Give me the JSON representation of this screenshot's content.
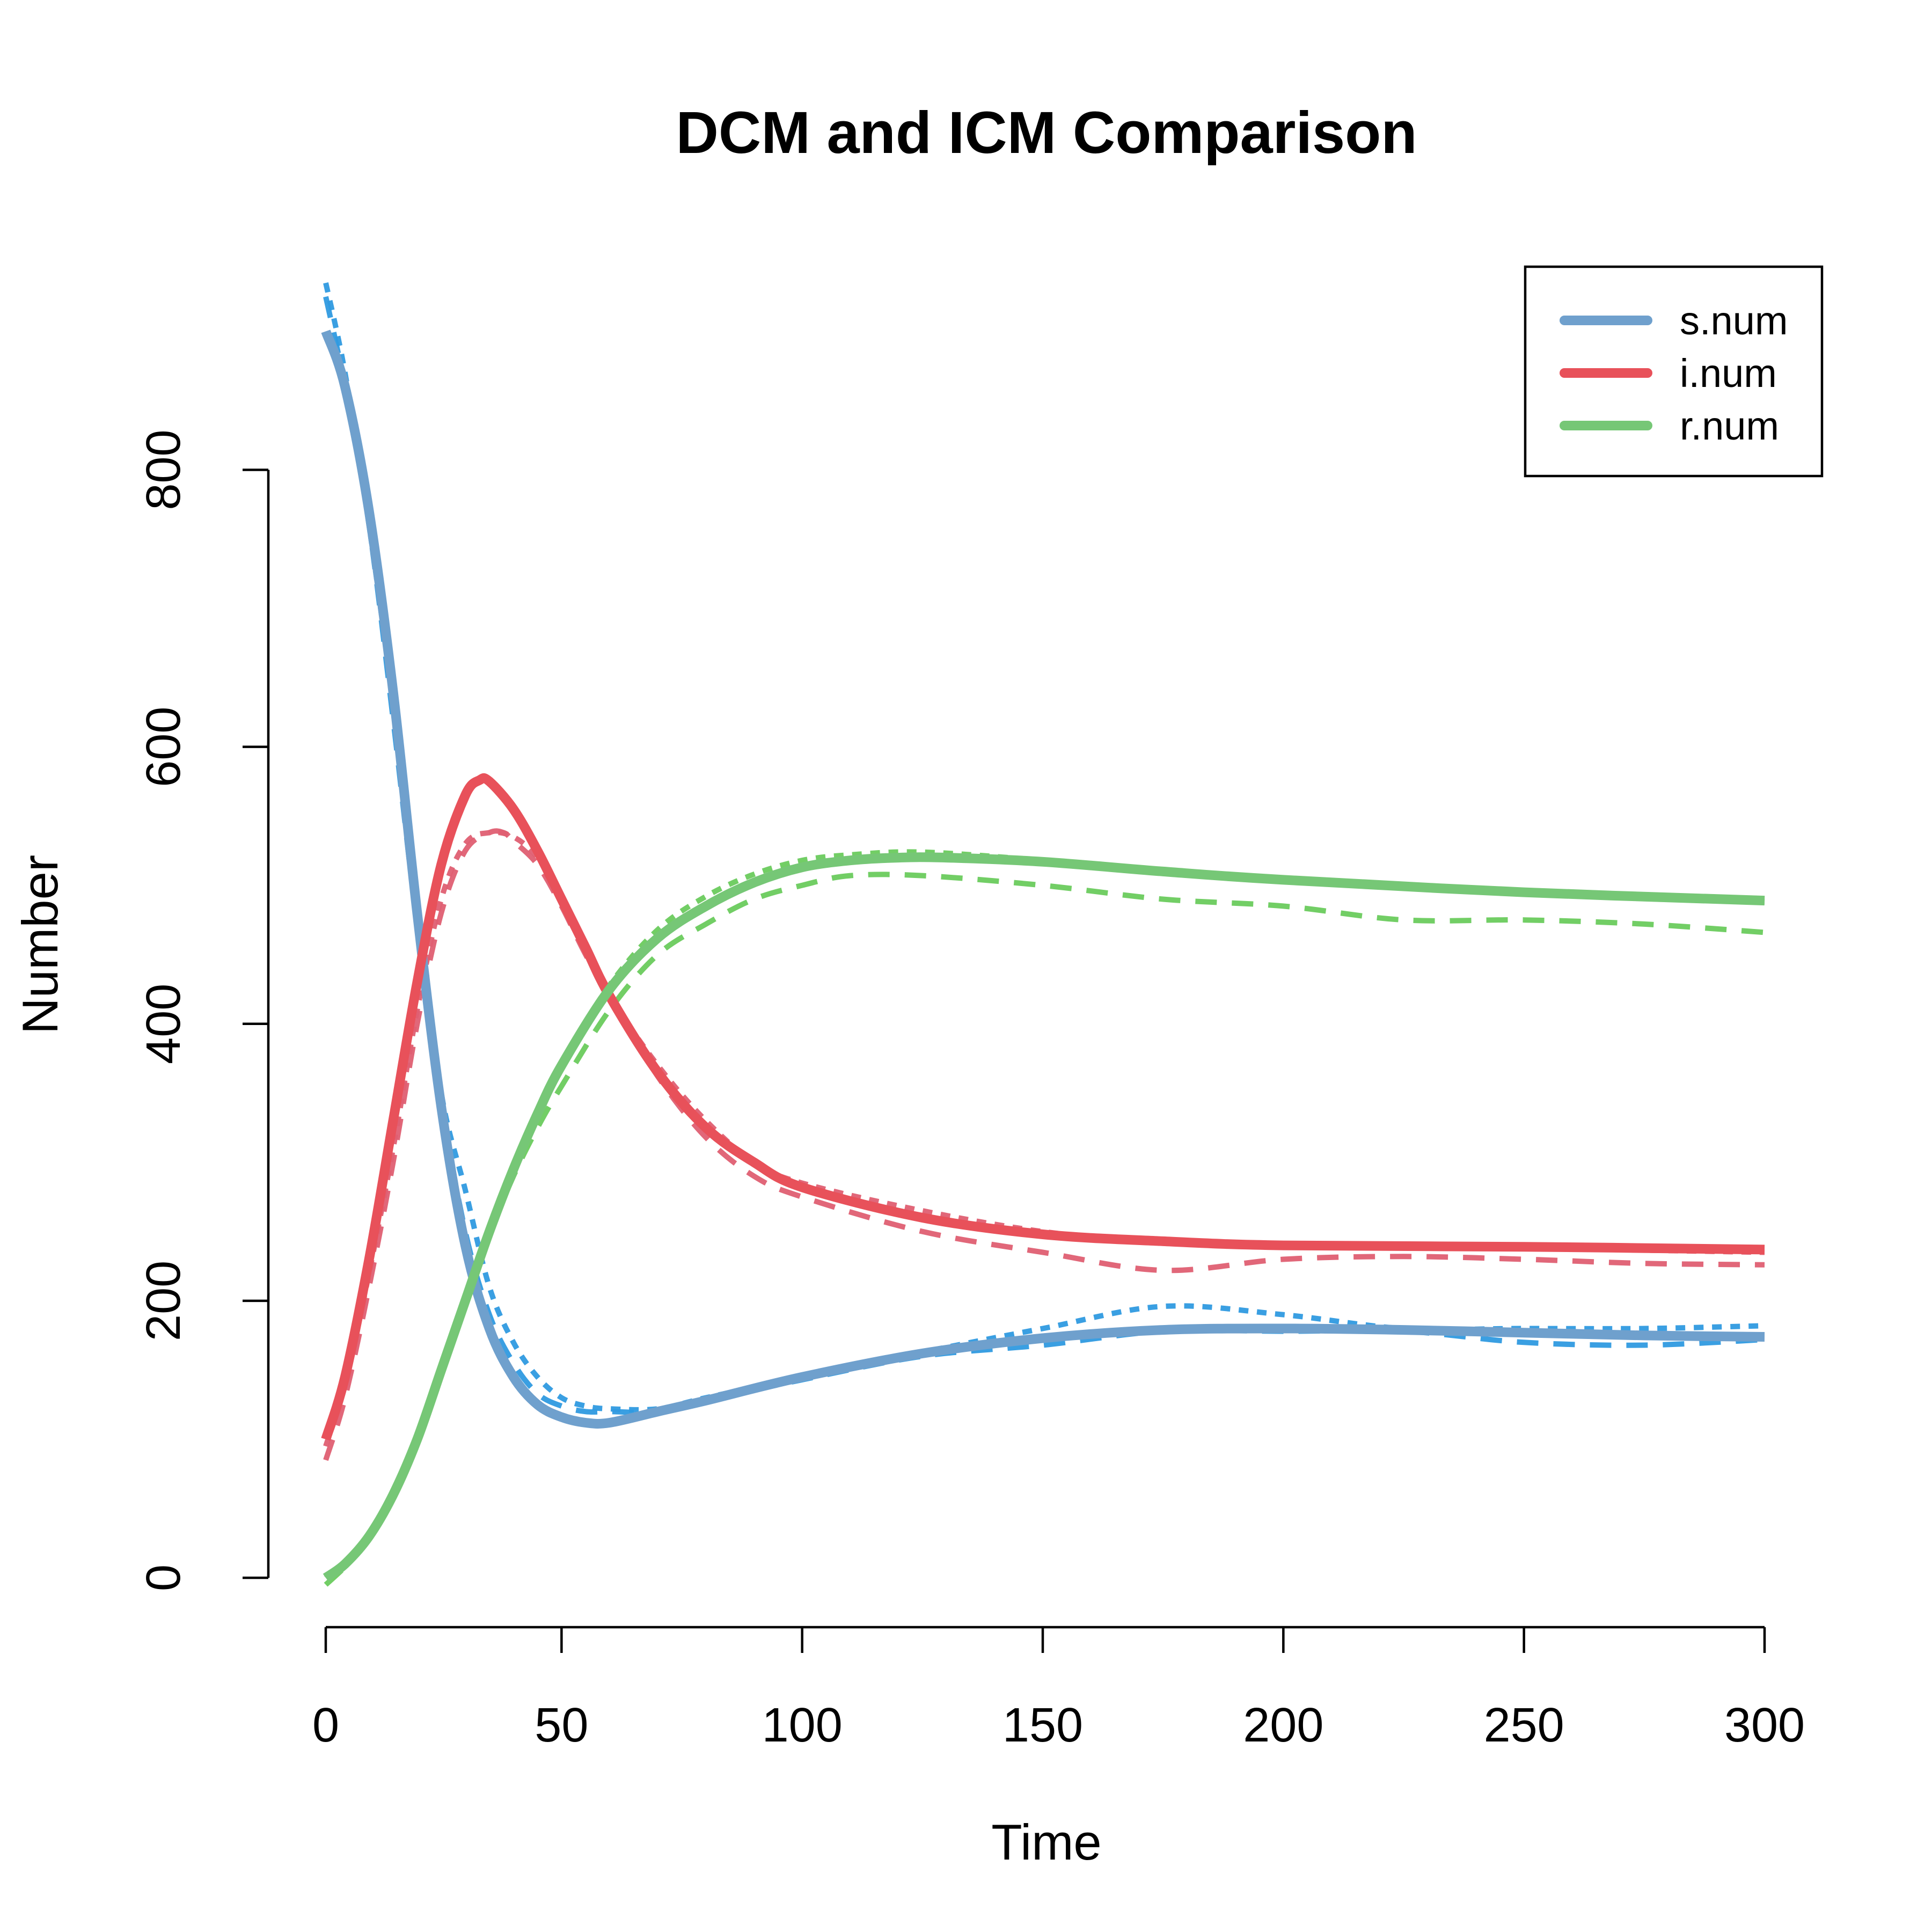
{
  "chart_data": {
    "type": "line",
    "title": "DCM and ICM Comparison",
    "xlabel": "Time",
    "ylabel": "Number",
    "xlim": [
      1,
      300
    ],
    "ylim": [
      0,
      930
    ],
    "x_ticks": [
      "0",
      "50",
      "100",
      "150",
      "200",
      "250",
      "300"
    ],
    "y_ticks": [
      "0",
      "200",
      "400",
      "600",
      "800"
    ],
    "legend": {
      "placement": "top-right",
      "entries": [
        "s.num",
        "i.num",
        "r.num"
      ]
    },
    "colors": {
      "s": "#6fa0cd",
      "i": "#e8515a",
      "r": "#76c776",
      "s_icm": "#2f9ae0",
      "i_icm": "#df5f72",
      "r_icm": "#6acb5d"
    },
    "series": [
      {
        "name": "s.num",
        "model": "DCM",
        "style": "solid",
        "color": "#6fa0cd",
        "x": [
          1,
          5,
          10,
          15,
          20,
          25,
          30,
          35,
          40,
          45,
          50,
          55,
          60,
          70,
          80,
          100,
          125,
          150,
          175,
          200,
          225,
          250,
          275,
          300
        ],
        "y": [
          900,
          860,
          770,
          640,
          480,
          340,
          240,
          180,
          145,
          125,
          116,
          112,
          112,
          120,
          128,
          145,
          162,
          173,
          179,
          180,
          179,
          177,
          175,
          174
        ]
      },
      {
        "name": "i.num",
        "model": "DCM",
        "style": "solid",
        "color": "#e8515a",
        "x": [
          1,
          5,
          10,
          15,
          20,
          25,
          30,
          33,
          35,
          40,
          45,
          50,
          55,
          60,
          70,
          80,
          90,
          100,
          125,
          150,
          175,
          200,
          250,
          300
        ],
        "y": [
          100,
          145,
          230,
          330,
          430,
          515,
          565,
          576,
          575,
          555,
          525,
          490,
          455,
          420,
          365,
          325,
          300,
          282,
          260,
          248,
          243,
          240,
          239,
          237
        ]
      },
      {
        "name": "r.num",
        "model": "DCM",
        "style": "solid",
        "color": "#76c776",
        "x": [
          1,
          5,
          10,
          15,
          20,
          25,
          30,
          35,
          40,
          45,
          50,
          60,
          70,
          80,
          90,
          100,
          110,
          120,
          130,
          150,
          175,
          200,
          250,
          300
        ],
        "y": [
          0,
          10,
          30,
          60,
          100,
          150,
          200,
          250,
          295,
          335,
          370,
          425,
          462,
          485,
          502,
          513,
          518,
          520,
          520,
          517,
          510,
          504,
          495,
          489
        ]
      },
      {
        "name": "s.num",
        "model": "ICM",
        "style": "dashed",
        "color": "#2f9ae0",
        "x": [
          1,
          5,
          10,
          15,
          20,
          25,
          30,
          35,
          40,
          45,
          50,
          55,
          60,
          70,
          80,
          100,
          125,
          150,
          175,
          200,
          225,
          250,
          275,
          300
        ],
        "y": [
          925,
          860,
          760,
          620,
          470,
          345,
          250,
          190,
          155,
          133,
          124,
          120,
          120,
          120,
          128,
          143,
          160,
          168,
          178,
          178,
          178,
          170,
          168,
          172
        ]
      },
      {
        "name": "i.num",
        "model": "ICM",
        "style": "dashed",
        "color": "#df5f72",
        "x": [
          1,
          5,
          10,
          15,
          20,
          25,
          30,
          35,
          38,
          40,
          45,
          50,
          55,
          60,
          70,
          80,
          90,
          100,
          125,
          150,
          175,
          200,
          225,
          250,
          275,
          300
        ],
        "y": [
          85,
          130,
          210,
          300,
          400,
          480,
          525,
          538,
          538,
          532,
          515,
          485,
          450,
          420,
          362,
          318,
          290,
          275,
          250,
          235,
          222,
          230,
          232,
          230,
          227,
          226
        ]
      },
      {
        "name": "r.num",
        "model": "ICM",
        "style": "dashed",
        "color": "#6acb5d",
        "x": [
          1,
          5,
          10,
          15,
          20,
          25,
          30,
          35,
          40,
          45,
          50,
          60,
          70,
          80,
          90,
          100,
          110,
          125,
          150,
          175,
          200,
          225,
          250,
          275,
          300
        ],
        "y": [
          -5,
          8,
          28,
          58,
          98,
          148,
          198,
          248,
          290,
          325,
          355,
          410,
          450,
          472,
          490,
          500,
          507,
          507,
          500,
          490,
          485,
          475,
          475,
          472,
          466
        ]
      },
      {
        "name": "s.num",
        "model": "ICM",
        "style": "dotted",
        "color": "#2f9ae0",
        "x": [
          1,
          5,
          10,
          15,
          20,
          25,
          30,
          35,
          40,
          45,
          50,
          55,
          60,
          70,
          80,
          100,
          125,
          150,
          175,
          200,
          225,
          250,
          275,
          300
        ],
        "y": [
          935,
          870,
          760,
          630,
          480,
          350,
          280,
          210,
          170,
          145,
          130,
          124,
          122,
          122,
          130,
          145,
          163,
          180,
          196,
          190,
          180,
          180,
          180,
          182
        ]
      },
      {
        "name": "i.num",
        "model": "ICM",
        "style": "dotted",
        "color": "#df5f72",
        "x": [
          1,
          5,
          10,
          15,
          20,
          25,
          30,
          35,
          40,
          45,
          50,
          55,
          60,
          70,
          80,
          90,
          100,
          125,
          150,
          175,
          200,
          250,
          300
        ],
        "y": [
          95,
          140,
          220,
          310,
          410,
          490,
          530,
          538,
          535,
          520,
          490,
          455,
          420,
          370,
          330,
          300,
          285,
          265,
          250,
          242,
          240,
          238,
          235
        ]
      },
      {
        "name": "r.num",
        "model": "ICM",
        "style": "dotted",
        "color": "#6acb5d",
        "x": [
          1,
          5,
          10,
          15,
          20,
          25,
          30,
          35,
          40,
          45,
          50,
          60,
          70,
          80,
          90,
          100,
          110,
          125,
          150,
          175,
          200,
          250,
          300
        ],
        "y": [
          0,
          12,
          32,
          62,
          102,
          152,
          202,
          250,
          295,
          335,
          372,
          428,
          468,
          492,
          508,
          518,
          522,
          524,
          518,
          510,
          505,
          495,
          488
        ]
      }
    ]
  }
}
